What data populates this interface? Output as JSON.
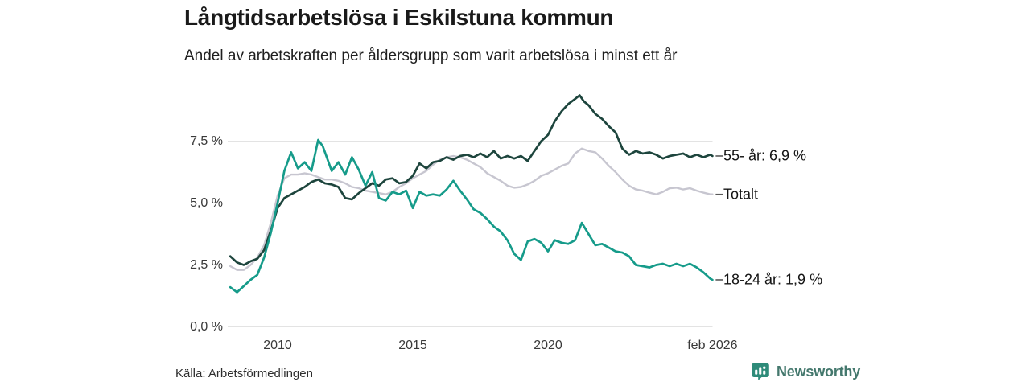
{
  "header": {
    "title": "Långtidsarbetslösa i Eskilstuna kommun",
    "subtitle": "Andel av arbetskraften per åldersgrupp som varit arbetslösa i minst ett år"
  },
  "footer": {
    "source": "Källa: Arbetsförmedlingen",
    "brand": "Newsworthy"
  },
  "colors": {
    "grid": "#e3e3e3",
    "end_dash": "#595959",
    "axis_text": "#3a3a3a",
    "logo_teal": "#2e8b79",
    "brand_text": "#44786d"
  },
  "chart_data": {
    "type": "line",
    "title": "Långtidsarbetslösa i Eskilstuna kommun",
    "subtitle": "Andel av arbetskraften per åldersgrupp som varit arbetslösa i minst ett år",
    "unit": "%",
    "grid": true,
    "legend_position": "right-end-labels",
    "x_axis": {
      "min": 2008.25,
      "max": 2026.083,
      "ticks": [
        {
          "value": 2010,
          "label": "2010"
        },
        {
          "value": 2015,
          "label": "2015"
        },
        {
          "value": 2020,
          "label": "2020"
        },
        {
          "value": 2026.083,
          "label": "feb 2026"
        }
      ]
    },
    "y_axis": {
      "min": 0,
      "max": 9.6,
      "ticks": [
        {
          "value": 0.0,
          "label": "0,0 %"
        },
        {
          "value": 2.5,
          "label": "2,5 %"
        },
        {
          "value": 5.0,
          "label": "5,0 %"
        },
        {
          "value": 7.5,
          "label": "7,5 %"
        }
      ]
    },
    "series": [
      {
        "name": "55- år",
        "end_label": "55- år: 6,9 %",
        "latest_value": 6.9,
        "color": "#1d453d",
        "points": [
          [
            2008.25,
            2.85
          ],
          [
            2008.5,
            2.6
          ],
          [
            2008.75,
            2.5
          ],
          [
            2009,
            2.65
          ],
          [
            2009.25,
            2.75
          ],
          [
            2009.5,
            3.1
          ],
          [
            2009.75,
            3.9
          ],
          [
            2010,
            4.8
          ],
          [
            2010.25,
            5.2
          ],
          [
            2010.5,
            5.35
          ],
          [
            2010.75,
            5.5
          ],
          [
            2011,
            5.65
          ],
          [
            2011.25,
            5.85
          ],
          [
            2011.5,
            5.95
          ],
          [
            2011.75,
            5.8
          ],
          [
            2012,
            5.75
          ],
          [
            2012.25,
            5.65
          ],
          [
            2012.5,
            5.2
          ],
          [
            2012.75,
            5.15
          ],
          [
            2013,
            5.4
          ],
          [
            2013.25,
            5.6
          ],
          [
            2013.5,
            5.8
          ],
          [
            2013.75,
            5.7
          ],
          [
            2014,
            5.95
          ],
          [
            2014.25,
            6.0
          ],
          [
            2014.5,
            5.8
          ],
          [
            2014.75,
            5.85
          ],
          [
            2015,
            6.1
          ],
          [
            2015.25,
            6.6
          ],
          [
            2015.5,
            6.4
          ],
          [
            2015.75,
            6.65
          ],
          [
            2016,
            6.7
          ],
          [
            2016.25,
            6.85
          ],
          [
            2016.5,
            6.75
          ],
          [
            2016.75,
            6.9
          ],
          [
            2017,
            6.95
          ],
          [
            2017.25,
            6.85
          ],
          [
            2017.5,
            7.0
          ],
          [
            2017.75,
            6.85
          ],
          [
            2018,
            7.1
          ],
          [
            2018.25,
            6.8
          ],
          [
            2018.5,
            6.9
          ],
          [
            2018.75,
            6.8
          ],
          [
            2019,
            6.9
          ],
          [
            2019.25,
            6.7
          ],
          [
            2019.5,
            7.1
          ],
          [
            2019.75,
            7.5
          ],
          [
            2020,
            7.75
          ],
          [
            2020.25,
            8.3
          ],
          [
            2020.5,
            8.7
          ],
          [
            2020.75,
            9.0
          ],
          [
            2021,
            9.2
          ],
          [
            2021.17,
            9.35
          ],
          [
            2021.33,
            9.1
          ],
          [
            2021.5,
            8.95
          ],
          [
            2021.75,
            8.6
          ],
          [
            2022,
            8.4
          ],
          [
            2022.25,
            8.1
          ],
          [
            2022.5,
            7.85
          ],
          [
            2022.75,
            7.2
          ],
          [
            2023,
            6.95
          ],
          [
            2023.25,
            7.1
          ],
          [
            2023.5,
            7.0
          ],
          [
            2023.75,
            7.05
          ],
          [
            2024,
            6.95
          ],
          [
            2024.25,
            6.8
          ],
          [
            2024.5,
            6.9
          ],
          [
            2024.75,
            6.95
          ],
          [
            2025,
            7.0
          ],
          [
            2025.25,
            6.85
          ],
          [
            2025.5,
            6.95
          ],
          [
            2025.75,
            6.85
          ],
          [
            2026,
            6.95
          ],
          [
            2026.083,
            6.9
          ]
        ]
      },
      {
        "name": "Totalt",
        "end_label": "Totalt",
        "latest_value": 5.35,
        "color": "#c7c6d0",
        "points": [
          [
            2008.25,
            2.45
          ],
          [
            2008.5,
            2.3
          ],
          [
            2008.75,
            2.3
          ],
          [
            2009,
            2.5
          ],
          [
            2009.25,
            2.8
          ],
          [
            2009.5,
            3.3
          ],
          [
            2009.75,
            4.2
          ],
          [
            2010,
            5.3
          ],
          [
            2010.25,
            6.0
          ],
          [
            2010.5,
            6.15
          ],
          [
            2010.75,
            6.15
          ],
          [
            2011,
            6.2
          ],
          [
            2011.25,
            6.15
          ],
          [
            2011.5,
            6.05
          ],
          [
            2011.75,
            5.95
          ],
          [
            2012,
            5.95
          ],
          [
            2012.25,
            5.9
          ],
          [
            2012.5,
            5.8
          ],
          [
            2012.75,
            5.65
          ],
          [
            2013,
            5.6
          ],
          [
            2013.25,
            5.5
          ],
          [
            2013.5,
            5.45
          ],
          [
            2013.75,
            5.4
          ],
          [
            2014,
            5.35
          ],
          [
            2014.25,
            5.45
          ],
          [
            2014.5,
            5.65
          ],
          [
            2014.75,
            5.8
          ],
          [
            2015,
            6.0
          ],
          [
            2015.25,
            6.15
          ],
          [
            2015.5,
            6.3
          ],
          [
            2015.75,
            6.55
          ],
          [
            2016,
            6.75
          ],
          [
            2016.25,
            6.85
          ],
          [
            2016.5,
            6.9
          ],
          [
            2016.75,
            6.85
          ],
          [
            2017,
            6.75
          ],
          [
            2017.25,
            6.6
          ],
          [
            2017.5,
            6.45
          ],
          [
            2017.75,
            6.2
          ],
          [
            2018,
            6.05
          ],
          [
            2018.25,
            5.9
          ],
          [
            2018.5,
            5.7
          ],
          [
            2018.75,
            5.62
          ],
          [
            2019,
            5.65
          ],
          [
            2019.25,
            5.75
          ],
          [
            2019.5,
            5.9
          ],
          [
            2019.75,
            6.1
          ],
          [
            2020,
            6.2
          ],
          [
            2020.25,
            6.35
          ],
          [
            2020.5,
            6.5
          ],
          [
            2020.75,
            6.6
          ],
          [
            2021,
            7.0
          ],
          [
            2021.25,
            7.2
          ],
          [
            2021.5,
            7.1
          ],
          [
            2021.75,
            7.05
          ],
          [
            2022,
            6.8
          ],
          [
            2022.25,
            6.5
          ],
          [
            2022.5,
            6.25
          ],
          [
            2022.75,
            5.95
          ],
          [
            2023,
            5.7
          ],
          [
            2023.25,
            5.55
          ],
          [
            2023.5,
            5.5
          ],
          [
            2023.75,
            5.42
          ],
          [
            2024,
            5.35
          ],
          [
            2024.25,
            5.45
          ],
          [
            2024.5,
            5.6
          ],
          [
            2024.75,
            5.62
          ],
          [
            2025,
            5.55
          ],
          [
            2025.25,
            5.6
          ],
          [
            2025.5,
            5.5
          ],
          [
            2025.75,
            5.42
          ],
          [
            2026,
            5.35
          ],
          [
            2026.083,
            5.35
          ]
        ]
      },
      {
        "name": "18-24 år",
        "end_label": "18-24 år: 1,9 %",
        "latest_value": 1.9,
        "color": "#169b8a",
        "points": [
          [
            2008.25,
            1.6
          ],
          [
            2008.5,
            1.4
          ],
          [
            2008.75,
            1.65
          ],
          [
            2009,
            1.9
          ],
          [
            2009.25,
            2.1
          ],
          [
            2009.5,
            2.8
          ],
          [
            2009.75,
            3.8
          ],
          [
            2010,
            5.0
          ],
          [
            2010.25,
            6.3
          ],
          [
            2010.5,
            7.05
          ],
          [
            2010.75,
            6.4
          ],
          [
            2011,
            6.65
          ],
          [
            2011.25,
            6.3
          ],
          [
            2011.5,
            7.55
          ],
          [
            2011.67,
            7.3
          ],
          [
            2012,
            6.3
          ],
          [
            2012.25,
            6.65
          ],
          [
            2012.5,
            6.15
          ],
          [
            2012.75,
            6.85
          ],
          [
            2013,
            6.35
          ],
          [
            2013.25,
            5.7
          ],
          [
            2013.5,
            6.25
          ],
          [
            2013.75,
            5.2
          ],
          [
            2014,
            5.1
          ],
          [
            2014.25,
            5.45
          ],
          [
            2014.5,
            5.35
          ],
          [
            2014.75,
            5.5
          ],
          [
            2015,
            4.8
          ],
          [
            2015.25,
            5.45
          ],
          [
            2015.5,
            5.3
          ],
          [
            2015.75,
            5.35
          ],
          [
            2016,
            5.3
          ],
          [
            2016.25,
            5.55
          ],
          [
            2016.5,
            5.9
          ],
          [
            2016.75,
            5.5
          ],
          [
            2017,
            5.15
          ],
          [
            2017.25,
            4.75
          ],
          [
            2017.5,
            4.6
          ],
          [
            2017.75,
            4.35
          ],
          [
            2018,
            4.05
          ],
          [
            2018.25,
            3.85
          ],
          [
            2018.5,
            3.5
          ],
          [
            2018.75,
            2.95
          ],
          [
            2019,
            2.7
          ],
          [
            2019.25,
            3.45
          ],
          [
            2019.5,
            3.55
          ],
          [
            2019.75,
            3.4
          ],
          [
            2020,
            3.05
          ],
          [
            2020.25,
            3.5
          ],
          [
            2020.5,
            3.4
          ],
          [
            2020.75,
            3.35
          ],
          [
            2021,
            3.5
          ],
          [
            2021.25,
            4.2
          ],
          [
            2021.5,
            3.75
          ],
          [
            2021.75,
            3.3
          ],
          [
            2022,
            3.35
          ],
          [
            2022.25,
            3.2
          ],
          [
            2022.5,
            3.05
          ],
          [
            2022.75,
            3.0
          ],
          [
            2023,
            2.85
          ],
          [
            2023.25,
            2.5
          ],
          [
            2023.5,
            2.45
          ],
          [
            2023.75,
            2.4
          ],
          [
            2024,
            2.5
          ],
          [
            2024.25,
            2.55
          ],
          [
            2024.5,
            2.45
          ],
          [
            2024.75,
            2.55
          ],
          [
            2025,
            2.45
          ],
          [
            2025.25,
            2.55
          ],
          [
            2025.5,
            2.4
          ],
          [
            2025.75,
            2.2
          ],
          [
            2026,
            1.95
          ],
          [
            2026.083,
            1.9
          ]
        ]
      }
    ]
  }
}
